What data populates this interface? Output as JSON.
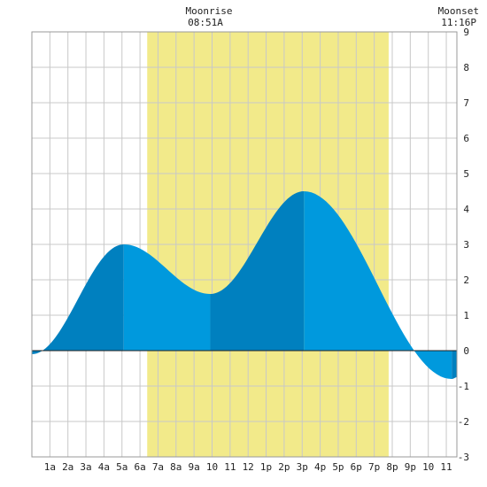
{
  "chart_data": {
    "type": "area",
    "title": "",
    "xlabel": "",
    "ylabel": "",
    "x_unit": "hour",
    "xlim": [
      0,
      23.6
    ],
    "ylim": [
      -3,
      9
    ],
    "x_tick_labels": [
      "1a",
      "2a",
      "3a",
      "4a",
      "5a",
      "6a",
      "7a",
      "8a",
      "9a",
      "10",
      "11",
      "12",
      "1p",
      "2p",
      "3p",
      "4p",
      "5p",
      "6p",
      "7p",
      "8p",
      "9p",
      "10",
      "11"
    ],
    "y_tick_labels": [
      "-3",
      "-2",
      "-1",
      "0",
      "1",
      "2",
      "3",
      "4",
      "5",
      "6",
      "7",
      "8",
      "9"
    ],
    "grid": true,
    "daylight_band": {
      "start_hour": 6.4,
      "end_hour": 19.8,
      "color": "#f2ea8a"
    },
    "extremes": [
      {
        "kind": "low",
        "time_hour": 0.0,
        "height": -0.1
      },
      {
        "kind": "high",
        "time_hour": 5.1,
        "height": 3.0
      },
      {
        "kind": "low",
        "time_hour": 9.9,
        "height": 1.6
      },
      {
        "kind": "high",
        "time_hour": 15.1,
        "height": 4.5
      },
      {
        "kind": "low",
        "time_hour": 23.3,
        "height": -0.8
      }
    ],
    "end_point": {
      "time_hour": 23.6,
      "height": -0.75
    },
    "colors": {
      "rising": "#0080bf",
      "falling": "#0099dd",
      "grid": "#c8c8c8",
      "frame": "#999999"
    }
  },
  "moon": {
    "rise": {
      "title": "Moonrise",
      "time": "08:51A"
    },
    "set": {
      "title": "Moonset",
      "time": "11:16P"
    }
  }
}
